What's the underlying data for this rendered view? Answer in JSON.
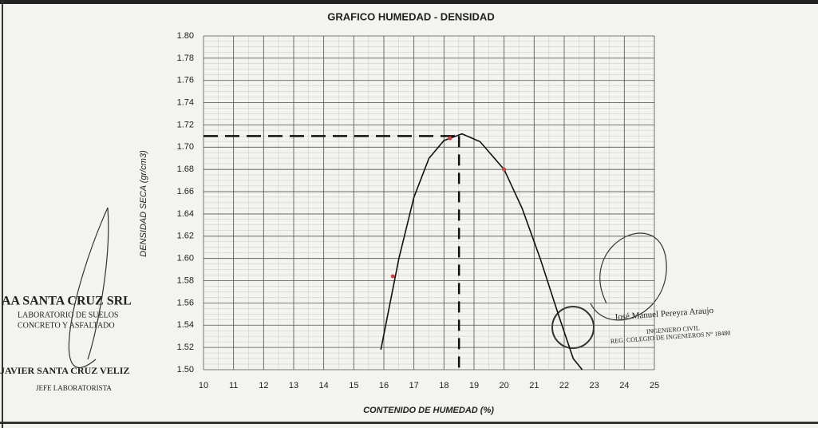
{
  "chart_data": {
    "type": "line",
    "title": "GRAFICO HUMEDAD - DENSIDAD",
    "x_label": "CONTENIDO DE HUMEDAD (%)",
    "y_label": "DENSIDAD SECA (gr/cm3)",
    "curve": {
      "color": "#111111",
      "x": [
        15.9,
        16.5,
        17.0,
        17.5,
        18.0,
        18.6,
        19.2,
        20.0,
        20.6,
        21.2,
        21.8,
        22.3,
        22.6
      ],
      "y": [
        1.518,
        1.6,
        1.655,
        1.69,
        1.706,
        1.712,
        1.705,
        1.68,
        1.645,
        1.6,
        1.55,
        1.51,
        1.5
      ]
    },
    "points": {
      "color": "#d04040",
      "x": [
        16.3,
        18.2,
        20.0
      ],
      "y": [
        1.584,
        1.708,
        1.68
      ]
    },
    "optimum": {
      "x": 18.5,
      "y": 1.71
    },
    "xlim": [
      10,
      25
    ],
    "ylim": [
      1.5,
      1.8
    ],
    "xticks": [
      10,
      11,
      12,
      13,
      14,
      15,
      16,
      17,
      18,
      19,
      20,
      21,
      22,
      23,
      24,
      25
    ],
    "yticks": [
      {
        "value": 1.5,
        "label": "1.50"
      },
      1.52,
      1.54,
      1.56,
      1.58,
      {
        "value": 1.6,
        "label": "1.60"
      },
      1.62,
      1.64,
      1.66,
      1.68,
      {
        "value": 1.7,
        "label": "1.70"
      },
      1.72,
      1.74,
      1.76,
      1.78,
      {
        "value": 1.8,
        "label": "1.80"
      }
    ],
    "grid": true,
    "stamps": [
      "AA SANTA CRUZ SRL",
      "LABORATORIO DE SUELOS",
      "CONCRETO Y ASFALTADO",
      "JAVIER SANTA CRUZ VELIZ",
      "JEFE LABORATORISTA",
      "José Manuel Pereyra Araujo",
      "INGENIERO CIVIL",
      "REG. COLEGIO DE INGENIEROS N° 18480"
    ]
  }
}
